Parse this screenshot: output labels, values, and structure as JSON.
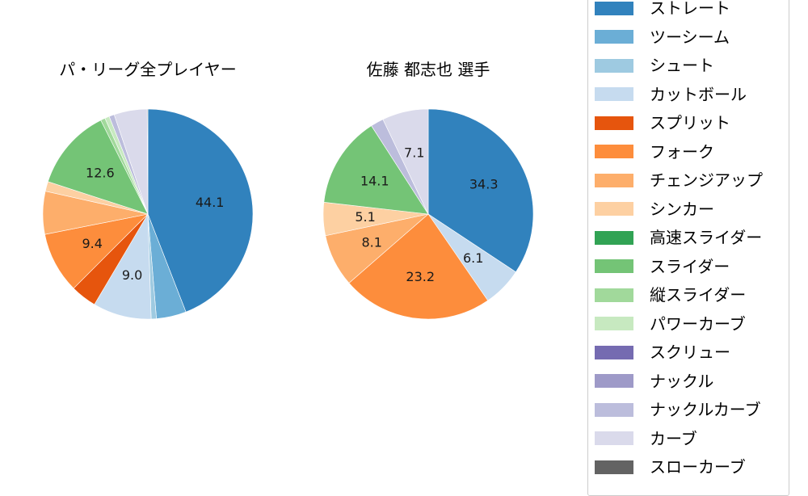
{
  "chart_data": [
    {
      "type": "pie",
      "title": "パ・リーグ全プレイヤー",
      "start_angle_deg": 90,
      "direction": "clockwise",
      "categories": [
        "ストレート",
        "ツーシーム",
        "シュート",
        "カットボール",
        "スプリット",
        "フォーク",
        "チェンジアップ",
        "シンカー",
        "スライダー",
        "縦スライダー",
        "パワーカーブ",
        "ナックルカーブ",
        "カーブ",
        "スローカーブ"
      ],
      "values": [
        44.1,
        4.6,
        0.8,
        9.0,
        4.0,
        9.4,
        6.6,
        1.5,
        12.6,
        0.7,
        0.7,
        0.8,
        5.1,
        0.1
      ],
      "labels_shown": [
        "44.1",
        "9.0",
        "9.4",
        "12.6"
      ],
      "colors": [
        "#3182bd",
        "#6baed6",
        "#9ecae1",
        "#c6dbef",
        "#e6550d",
        "#fd8d3c",
        "#fdae6b",
        "#fdd0a2",
        "#74c476",
        "#a1d99b",
        "#c7e9c0",
        "#bcbddc",
        "#dadaeb",
        "#636363"
      ]
    },
    {
      "type": "pie",
      "title": "佐藤 都志也  選手",
      "start_angle_deg": 90,
      "direction": "clockwise",
      "categories": [
        "ストレート",
        "カットボール",
        "フォーク",
        "チェンジアップ",
        "シンカー",
        "スライダー",
        "ナックルカーブ",
        "カーブ"
      ],
      "values": [
        34.3,
        6.1,
        23.2,
        8.1,
        5.1,
        14.1,
        2.0,
        7.1
      ],
      "labels_shown": [
        "34.3",
        "6.1",
        "23.2",
        "8.1",
        "5.1",
        "14.1",
        "7.1"
      ],
      "colors": [
        "#3182bd",
        "#c6dbef",
        "#fd8d3c",
        "#fdae6b",
        "#fdd0a2",
        "#74c476",
        "#bcbddc",
        "#dadaeb"
      ]
    }
  ],
  "legend": {
    "items": [
      {
        "label": "ストレート",
        "color": "#3182bd"
      },
      {
        "label": "ツーシーム",
        "color": "#6baed6"
      },
      {
        "label": "シュート",
        "color": "#9ecae1"
      },
      {
        "label": "カットボール",
        "color": "#c6dbef"
      },
      {
        "label": "スプリット",
        "color": "#e6550d"
      },
      {
        "label": "フォーク",
        "color": "#fd8d3c"
      },
      {
        "label": "チェンジアップ",
        "color": "#fdae6b"
      },
      {
        "label": "シンカー",
        "color": "#fdd0a2"
      },
      {
        "label": "高速スライダー",
        "color": "#31a354"
      },
      {
        "label": "スライダー",
        "color": "#74c476"
      },
      {
        "label": "縦スライダー",
        "color": "#a1d99b"
      },
      {
        "label": "パワーカーブ",
        "color": "#c7e9c0"
      },
      {
        "label": "スクリュー",
        "color": "#756bb1"
      },
      {
        "label": "ナックル",
        "color": "#9e9ac8"
      },
      {
        "label": "ナックルカーブ",
        "color": "#bcbddc"
      },
      {
        "label": "カーブ",
        "color": "#dadaeb"
      },
      {
        "label": "スローカーブ",
        "color": "#636363"
      }
    ]
  }
}
